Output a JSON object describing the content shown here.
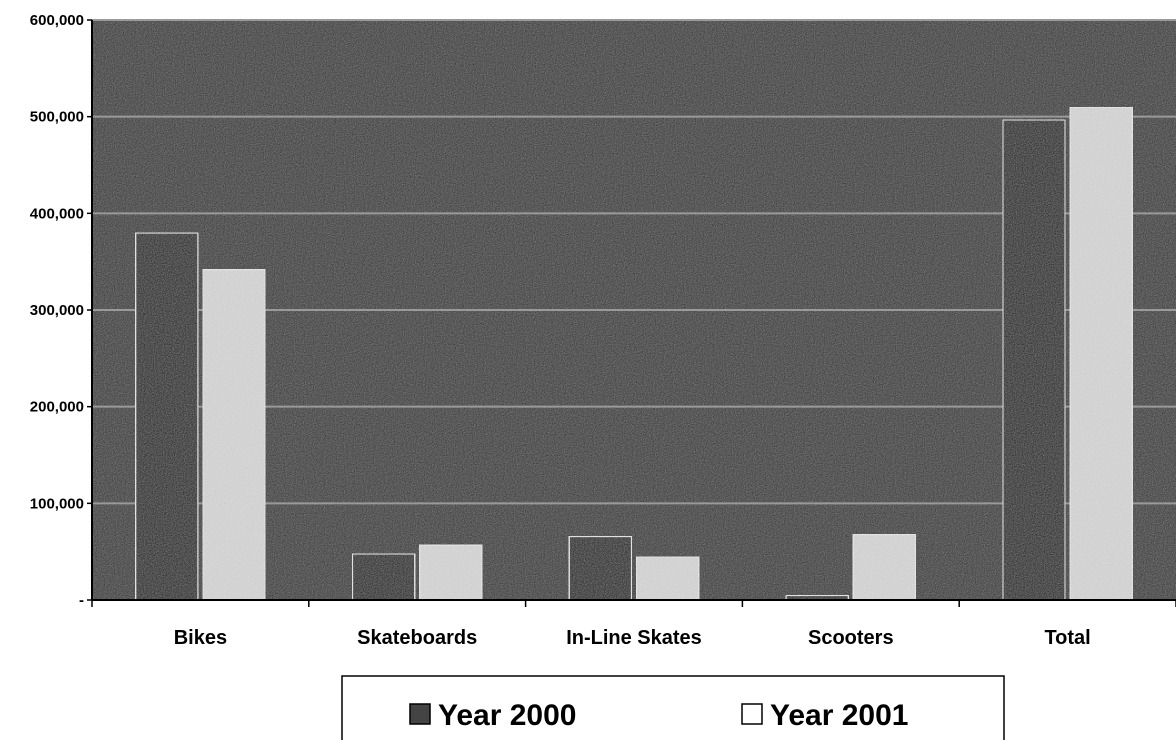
{
  "chart_data": {
    "type": "bar",
    "categories": [
      "Bikes",
      "Skateboards",
      "In-Line Skates",
      "Scooters",
      "Total"
    ],
    "series": [
      {
        "name": "Year 2000",
        "values": [
          380000,
          48000,
          66000,
          5000,
          497000
        ],
        "color": "#111111"
      },
      {
        "name": "Year 2001",
        "values": [
          342000,
          57000,
          45000,
          68000,
          510000
        ],
        "color": "#d8d8d8"
      }
    ],
    "ylim": [
      0,
      600000
    ],
    "yticks": [
      0,
      100000,
      200000,
      300000,
      400000,
      500000,
      600000
    ],
    "ytick_labels": [
      "-",
      "100,000",
      "200,000",
      "300,000",
      "400,000",
      "500,000",
      "600,000"
    ],
    "grid": true,
    "legend": "bottom-center",
    "plot_background": "#2a2a2a",
    "gridline_color": "#9a9a9a",
    "xlabel": "",
    "ylabel": ""
  }
}
